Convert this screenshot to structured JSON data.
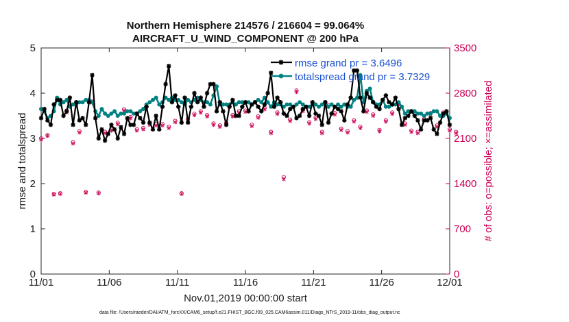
{
  "colors": {
    "rmse": "#000000",
    "spread": "#008080",
    "obs": "#cc0055",
    "legend_text": "#1a4fd1"
  },
  "chart_data": {
    "type": "line",
    "title_line1": "Northern Hemisphere 214576 / 216604 = 99.064%",
    "title_line2": "AIRCRAFT_U_WIND_COMPONENT @ 200 hPa",
    "xlabel": "Nov.01,2019 00:00:00 start",
    "ylabel_left": "rmse and totalspread",
    "ylabel_right": "# of obs: o=possible; ×=assimilated",
    "footer": "data file: /Users/raeder/DAI/ATM_forcXX/CAM6_setup/f.e21.FHIST_BGC.f09_025.CAM6assim.011/Diags_NTrS_2019-11/obs_diag_output.nc",
    "x_ticks": [
      {
        "label": "11/01",
        "day": 0
      },
      {
        "label": "11/06",
        "day": 5
      },
      {
        "label": "11/11",
        "day": 10
      },
      {
        "label": "11/16",
        "day": 15
      },
      {
        "label": "11/21",
        "day": 20
      },
      {
        "label": "11/26",
        "day": 25
      },
      {
        "label": "12/01",
        "day": 30
      }
    ],
    "y_left_ticks": [
      "0",
      "1",
      "2",
      "3",
      "4",
      "5"
    ],
    "y_right_ticks": [
      "0",
      "700",
      "1400",
      "2100",
      "2800",
      "3500"
    ],
    "xlim": [
      0,
      30
    ],
    "ylim_left": [
      0,
      5
    ],
    "ylim_right": [
      0,
      3500
    ],
    "legend": [
      {
        "label": "rmse grand pr = 3.6496",
        "series": "rmse"
      },
      {
        "label": "totalspread grand pr = 3.7329",
        "series": "spread"
      }
    ],
    "series": [
      {
        "name": "rmse",
        "values": [
          3.45,
          3.65,
          3.4,
          3.3,
          3.75,
          3.85,
          3.85,
          3.5,
          3.6,
          3.9,
          3.3,
          3.8,
          3.4,
          3.45,
          3.3,
          3.8,
          4.4,
          3.45,
          3.0,
          3.2,
          2.95,
          3.1,
          3.3,
          3.2,
          3.0,
          3.25,
          3.1,
          3.45,
          3.3,
          3.3,
          3.55,
          3.45,
          3.35,
          3.7,
          3.35,
          3.2,
          3.5,
          3.2,
          3.7,
          4.2,
          4.6,
          3.8,
          3.95,
          3.7,
          3.35,
          3.9,
          3.35,
          3.7,
          4.0,
          3.8,
          3.9,
          3.7,
          4.0,
          4.2,
          4.2,
          3.6,
          3.8,
          3.6,
          3.3,
          3.7,
          3.85,
          3.5,
          3.5,
          3.7,
          3.8,
          3.6,
          3.75,
          3.8,
          3.7,
          3.6,
          3.75,
          4.0,
          4.45,
          3.7,
          3.9,
          3.8,
          3.55,
          3.5,
          3.65,
          3.7,
          3.45,
          3.5,
          3.65,
          3.7,
          3.5,
          3.8,
          3.55,
          3.5,
          3.3,
          3.8,
          3.35,
          3.55,
          3.7,
          3.65,
          3.6,
          3.4,
          3.75,
          3.9,
          4.5,
          4.5,
          3.9,
          3.6,
          4.0,
          3.9,
          3.8,
          3.7,
          3.65,
          3.85,
          3.95,
          3.8,
          3.75,
          3.9,
          3.65,
          3.3,
          3.45,
          3.5,
          3.6,
          3.5,
          3.4,
          3.2,
          3.4,
          3.4,
          3.45,
          3.2,
          3.1,
          3.35,
          3.55,
          3.6,
          3.3
        ]
      },
      {
        "name": "totalspread",
        "values": [
          3.65,
          3.6,
          3.45,
          3.5,
          3.6,
          3.9,
          3.75,
          3.8,
          3.85,
          3.7,
          3.75,
          3.75,
          3.8,
          3.8,
          3.85,
          3.85,
          3.8,
          3.6,
          3.5,
          3.65,
          3.55,
          3.5,
          3.55,
          3.6,
          3.5,
          3.55,
          3.55,
          3.6,
          3.6,
          3.55,
          3.55,
          3.6,
          3.65,
          3.75,
          3.8,
          3.85,
          3.9,
          3.75,
          3.8,
          3.9,
          3.85,
          3.9,
          3.85,
          3.85,
          3.8,
          3.75,
          3.85,
          3.8,
          3.85,
          3.9,
          3.85,
          3.8,
          3.8,
          3.75,
          3.95,
          4.15,
          3.75,
          3.75,
          3.75,
          3.75,
          3.8,
          3.75,
          3.8,
          3.8,
          3.8,
          3.8,
          3.75,
          3.8,
          3.85,
          3.8,
          3.9,
          3.8,
          3.7,
          3.8,
          3.75,
          3.75,
          3.7,
          3.75,
          3.75,
          3.7,
          3.75,
          3.8,
          3.75,
          3.7,
          3.7,
          3.75,
          3.75,
          3.7,
          3.75,
          3.8,
          3.7,
          3.75,
          3.7,
          3.75,
          3.7,
          3.75,
          3.7,
          3.7,
          3.85,
          3.9,
          4.4,
          3.8,
          4.05,
          4.1,
          3.8,
          3.75,
          3.75,
          3.85,
          3.7,
          3.7,
          3.75,
          3.75,
          3.8,
          3.7,
          3.55,
          3.6,
          3.6,
          3.6,
          3.55,
          3.55,
          3.5,
          3.55,
          3.55,
          3.6,
          3.6,
          3.5,
          3.5,
          3.55,
          3.45
        ]
      },
      {
        "name": "obs_possible",
        "values": [
          2100,
          2350,
          2150,
          2000,
          1240,
          2180,
          1250,
          3090,
          2530,
          2700,
          2040,
          2620,
          2210,
          2340,
          1270,
          2350,
          2670,
          2590,
          1260,
          2280,
          2200,
          2340,
          2240,
          1250,
          2340,
          2500,
          2550,
          2570,
          2430,
          2510,
          2240,
          2220,
          2260,
          2300,
          2330,
          2340,
          2320,
          2180,
          2320,
          2300,
          2280,
          2350,
          2370,
          2250,
          1250,
          2280,
          2400,
          2390,
          2480,
          2550,
          2520,
          2570,
          2460,
          2380,
          2330,
          2300,
          2300,
          2320,
          2340,
          2370,
          2460,
          2520,
          2520,
          2390,
          2530,
          2350,
          2310,
          2400,
          2440,
          2550,
          2570,
          2590,
          2200,
          2440,
          2500,
          2400,
          1500,
          2540,
          2390,
          2660,
          2840,
          2400,
          2540,
          2480,
          2350,
          2400,
          2420,
          2260,
          2200,
          2460,
          2610,
          2350,
          2490,
          2340,
          2250,
          2290,
          2210,
          2240,
          2380,
          2370,
          2280,
          2450,
          2530,
          2490,
          2470,
          2400,
          2230,
          2210,
          2380,
          2430,
          2500,
          2480,
          2640,
          2590,
          2330,
          2260,
          2220,
          2170,
          2200,
          2250,
          2400,
          2530,
          2490,
          2240,
          2300,
          2450,
          2500,
          2360,
          2240,
          2270,
          2200
        ]
      },
      {
        "name": "obs_assimilated",
        "values": [
          2080,
          2330,
          2140,
          1990,
          1230,
          2160,
          1240,
          3030,
          2500,
          2670,
          2020,
          2600,
          2190,
          2320,
          1260,
          2330,
          2650,
          2570,
          1250,
          2260,
          2180,
          2320,
          2220,
          1240,
          2320,
          2480,
          2530,
          2550,
          2410,
          2490,
          2220,
          2200,
          2240,
          2280,
          2310,
          2320,
          2300,
          2160,
          2300,
          2280,
          2260,
          2330,
          2350,
          2230,
          1240,
          2260,
          2380,
          2370,
          2460,
          2530,
          2500,
          2550,
          2440,
          2360,
          2310,
          2280,
          2280,
          2300,
          2320,
          2350,
          2440,
          2500,
          2500,
          2370,
          2510,
          2330,
          2290,
          2380,
          2420,
          2530,
          2550,
          2570,
          2180,
          2420,
          2480,
          2380,
          1470,
          2520,
          2370,
          2640,
          2820,
          2380,
          2520,
          2460,
          2330,
          2380,
          2400,
          2240,
          2180,
          2440,
          2590,
          2330,
          2470,
          2320,
          2230,
          2270,
          2190,
          2220,
          2360,
          2350,
          2260,
          2430,
          2510,
          2470,
          2450,
          2380,
          2210,
          2190,
          2360,
          2410,
          2480,
          2460,
          2620,
          2570,
          2310,
          2240,
          2200,
          2150,
          2180,
          2230,
          2380,
          2510,
          2470,
          2220,
          2280,
          2430,
          2480,
          2340,
          2220,
          2250,
          2180
        ]
      }
    ]
  }
}
